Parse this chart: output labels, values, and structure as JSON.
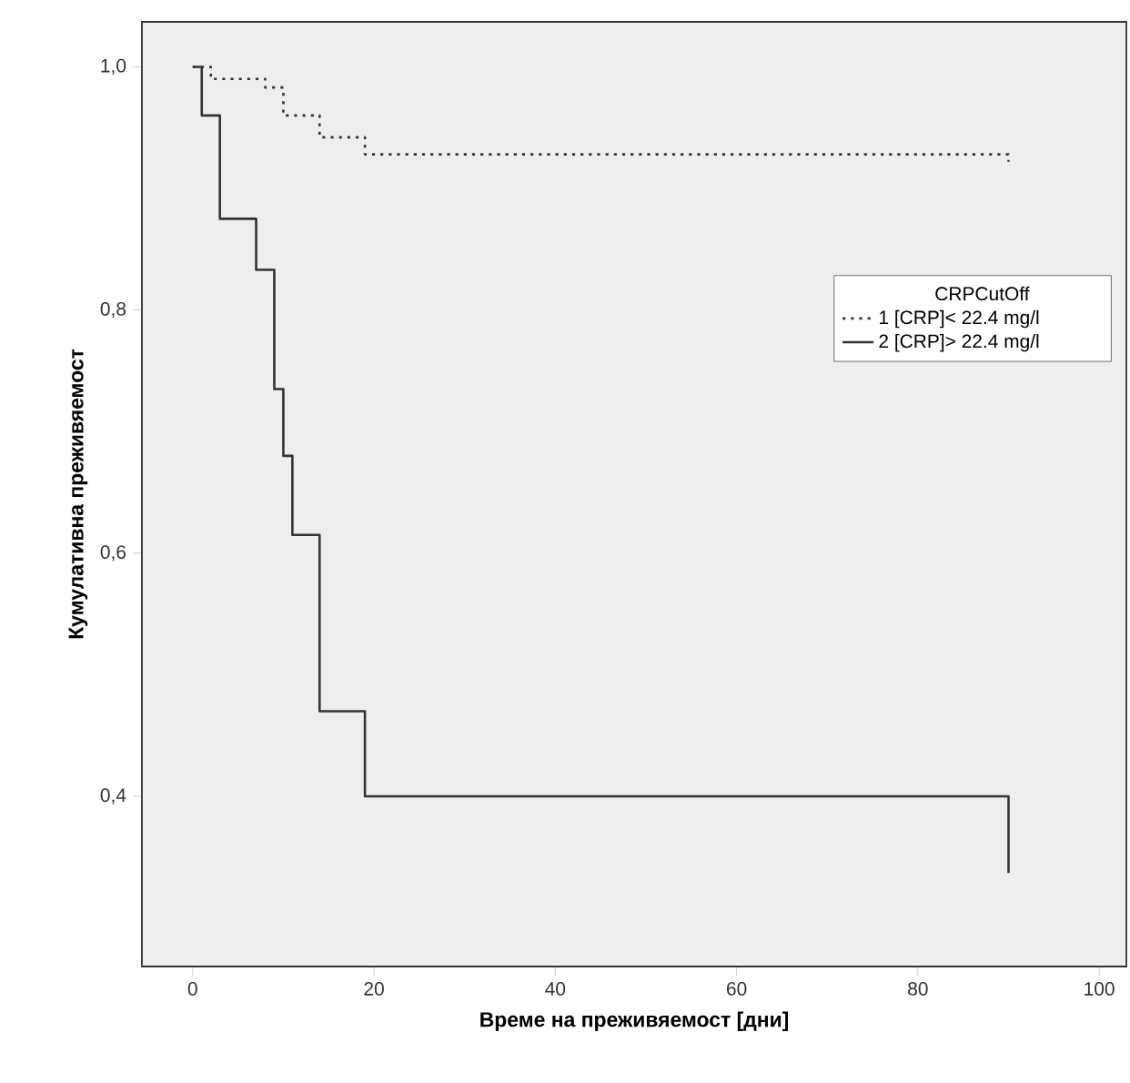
{
  "chart_data": {
    "type": "step",
    "xlabel": "Време на преживяемост [дни]",
    "ylabel": "Кумулативна преживяемост",
    "legend_title": "CRPCutOff",
    "series": [
      {
        "name": "1 [CRP]< 22.4 mg/l",
        "color": "#333333",
        "line_style": "dotted",
        "x": [
          0,
          2,
          8,
          10,
          14,
          19,
          90
        ],
        "values": [
          1.0,
          0.99,
          0.983,
          0.96,
          0.942,
          0.928,
          0.922
        ]
      },
      {
        "name": "2 [CRP]> 22.4 mg/l",
        "color": "#333333",
        "line_style": "solid",
        "x": [
          0,
          1,
          3,
          7,
          9,
          10,
          11,
          14,
          19,
          90
        ],
        "values": [
          1.0,
          0.96,
          0.875,
          0.833,
          0.735,
          0.68,
          0.615,
          0.47,
          0.4,
          0.337
        ]
      }
    ],
    "xlim": [
      -5.6,
      103
    ],
    "ylim": [
      0.26,
      1.037
    ],
    "xticks": [
      0,
      20,
      40,
      60,
      80,
      100
    ],
    "yticks": [
      {
        "value": 0.4,
        "label": "0,4"
      },
      {
        "value": 0.6,
        "label": "0,6"
      },
      {
        "value": 0.8,
        "label": "0,8"
      },
      {
        "value": 1.0,
        "label": "1,0"
      }
    ],
    "grid": false,
    "legend": "right"
  }
}
